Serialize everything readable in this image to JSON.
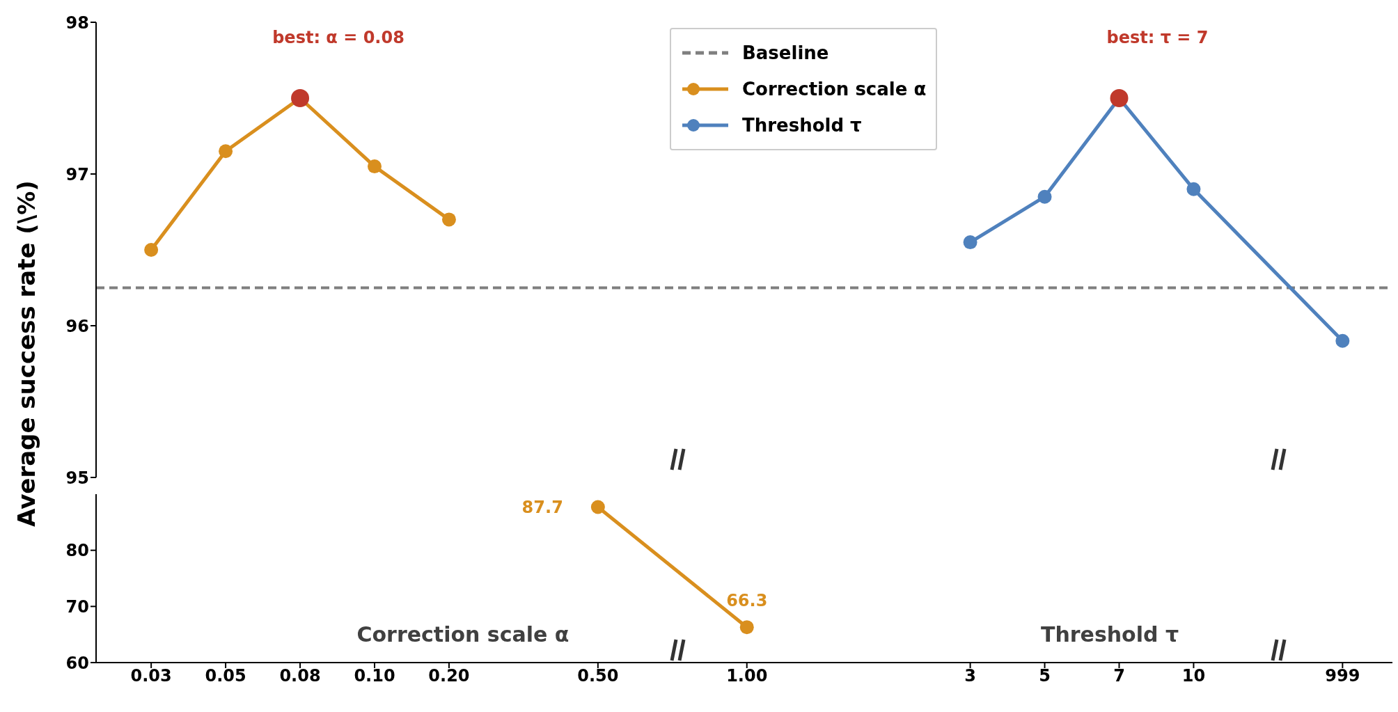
{
  "chart_data": [
    {
      "type": "line",
      "ylabel": "Average success rate (\\%)",
      "categories": [
        "0.03",
        "0.05",
        "0.08",
        "0.10",
        "0.20",
        null,
        "0.50",
        null,
        "1.00",
        null,
        null,
        "3",
        "5",
        "7",
        "10",
        null,
        "999"
      ],
      "ylim": [
        95,
        98
      ],
      "yticks": [
        95,
        96,
        97,
        98
      ],
      "tick_labels": "y",
      "legend": "top",
      "marker": "circle",
      "line_style": "solid",
      "series": [
        {
          "name": "Correction scale α",
          "color": "#d98f1e",
          "values": [
            96.5,
            97.15,
            97.5,
            97.05,
            96.7,
            null,
            null,
            null,
            null,
            null,
            null,
            null,
            null,
            null,
            null,
            null,
            null
          ],
          "colors": [
            "#d98f1e",
            "#d98f1e",
            "#c0392b",
            "#d98f1e",
            "#d98f1e",
            null,
            null,
            null,
            null,
            null,
            null,
            null,
            null,
            null,
            null,
            null,
            null
          ]
        },
        {
          "name": "Threshold τ",
          "color": "#4f81bd",
          "values": [
            null,
            null,
            null,
            null,
            null,
            null,
            null,
            null,
            null,
            null,
            null,
            96.55,
            96.85,
            97.5,
            96.9,
            null,
            95.9
          ],
          "colors": [
            null,
            null,
            null,
            null,
            null,
            null,
            null,
            null,
            null,
            null,
            null,
            "#4f81bd",
            "#4f81bd",
            "#c0392b",
            "#4f81bd",
            null,
            "#4f81bd"
          ]
        }
      ],
      "ref_lines": [
        {
          "axis": "y",
          "value": 96.25,
          "label": "Baseline",
          "color": "#7f7f7f",
          "line_style": "dashed"
        }
      ],
      "annotations": [
        "best: α = 0.08",
        "best: τ = 7"
      ]
    },
    {
      "type": "line",
      "categories": [
        "0.03",
        "0.05",
        "0.08",
        "0.10",
        "0.20",
        null,
        "0.50",
        null,
        "1.00",
        null,
        null,
        "3",
        "5",
        "7",
        "10",
        null,
        "999"
      ],
      "ylim": [
        60,
        90
      ],
      "yticks": [
        60,
        70,
        80
      ],
      "marker": "circle",
      "line_style": "solid",
      "series": [
        {
          "color": "#d98f1e",
          "values": [
            null,
            null,
            null,
            null,
            null,
            null,
            87.7,
            null,
            66.3,
            null,
            null,
            null,
            null,
            null,
            null,
            null,
            null
          ],
          "value_labels": [
            null,
            null,
            null,
            null,
            null,
            null,
            "87.7",
            null,
            "66.3",
            null,
            null,
            null,
            null,
            null,
            null,
            null,
            null
          ]
        }
      ],
      "annotations": [
        "Correction scale α",
        "Threshold τ"
      ]
    }
  ]
}
